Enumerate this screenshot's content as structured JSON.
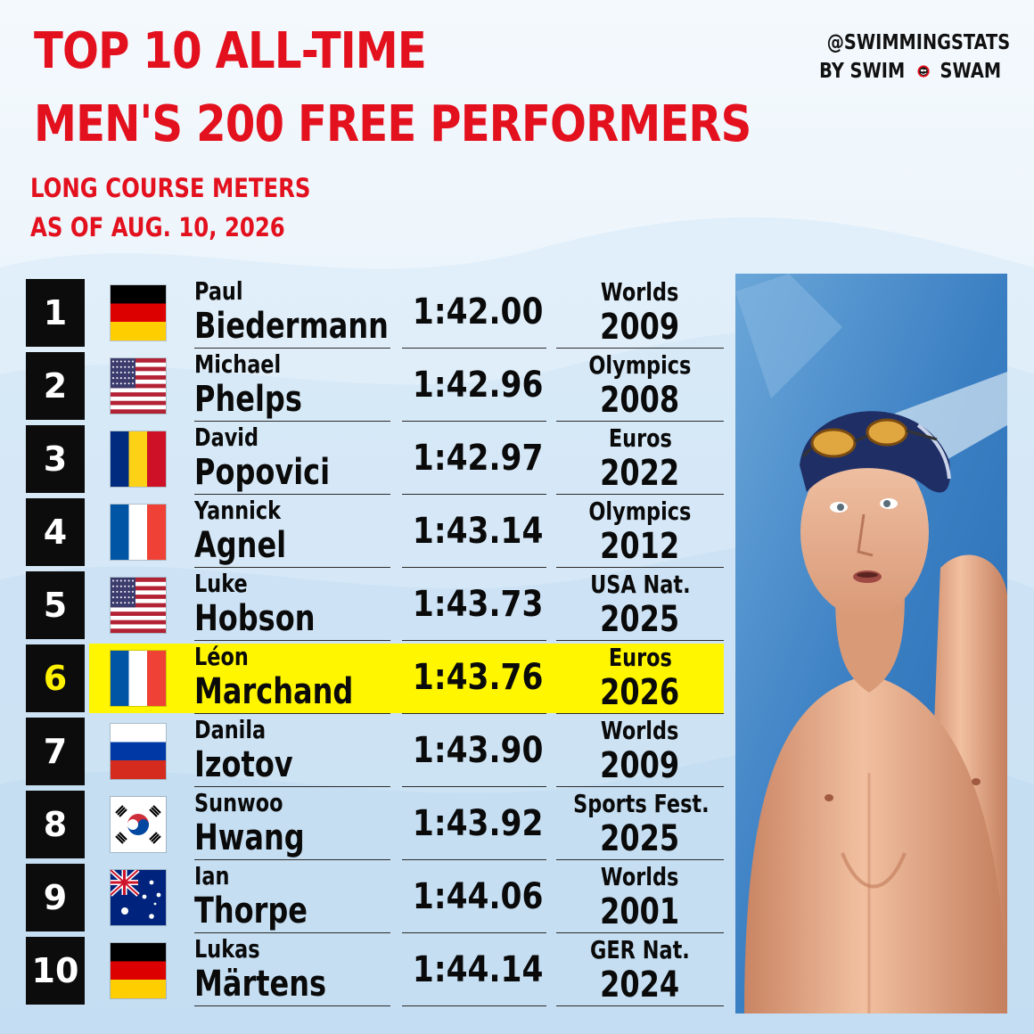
{
  "header": {
    "title_line1": "TOP 10 ALL-TIME",
    "title_line2": "MEN'S 200 FREE PERFORMERS",
    "subtitle_line1": "LONG COURSE METERS",
    "subtitle_line2": "AS OF AUG. 10, 2026",
    "accent_color": "#e3101e"
  },
  "brand": {
    "handle": "@SWIMMINGSTATS",
    "by_left": "BY SWIM",
    "by_right": "SWAM",
    "logo_icon": "swimswam-logo-icon"
  },
  "highlight_color": "#fff600",
  "rankings": [
    {
      "rank": "1",
      "flag": "germany",
      "first_name": "Paul",
      "last_name": "Biedermann",
      "time": "1:42.00",
      "event": "Worlds",
      "year": "2009"
    },
    {
      "rank": "2",
      "flag": "usa",
      "first_name": "Michael",
      "last_name": "Phelps",
      "time": "1:42.96",
      "event": "Olympics",
      "year": "2008"
    },
    {
      "rank": "3",
      "flag": "romania",
      "first_name": "David",
      "last_name": "Popovici",
      "time": "1:42.97",
      "event": "Euros",
      "year": "2022"
    },
    {
      "rank": "4",
      "flag": "france",
      "first_name": "Yannick",
      "last_name": "Agnel",
      "time": "1:43.14",
      "event": "Olympics",
      "year": "2012"
    },
    {
      "rank": "5",
      "flag": "usa",
      "first_name": "Luke",
      "last_name": "Hobson",
      "time": "1:43.73",
      "event": "USA Nat.",
      "year": "2025"
    },
    {
      "rank": "6",
      "flag": "france",
      "first_name": "Léon",
      "last_name": "Marchand",
      "time": "1:43.76",
      "event": "Euros",
      "year": "2026",
      "highlight": true
    },
    {
      "rank": "7",
      "flag": "russia",
      "first_name": "Danila",
      "last_name": "Izotov",
      "time": "1:43.90",
      "event": "Worlds",
      "year": "2009"
    },
    {
      "rank": "8",
      "flag": "south-korea",
      "first_name": "Sunwoo",
      "last_name": "Hwang",
      "time": "1:43.92",
      "event": "Sports Fest.",
      "year": "2025"
    },
    {
      "rank": "9",
      "flag": "australia",
      "first_name": "Ian",
      "last_name": "Thorpe",
      "time": "1:44.06",
      "event": "Worlds",
      "year": "2001"
    },
    {
      "rank": "10",
      "flag": "germany",
      "first_name": "Lukas",
      "last_name": "Märtens",
      "time": "1:44.14",
      "event": "GER Nat.",
      "year": "2024"
    }
  ],
  "photo": {
    "subject_icon": "swimmer-photo"
  }
}
